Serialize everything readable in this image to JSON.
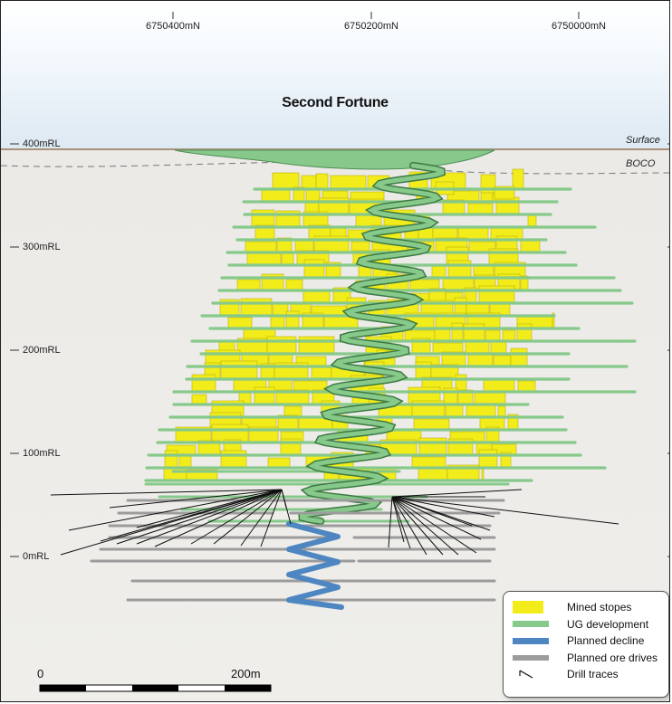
{
  "title": "Second Fortune",
  "northings": [
    "6750400mN",
    "6750200mN",
    "6750000mN"
  ],
  "rl_labels": [
    "400mRL",
    "300mRL",
    "200mRL",
    "100mRL",
    "0mRL"
  ],
  "surface_label": "Surface",
  "boco_label": "BOCO",
  "legend": {
    "items": [
      {
        "label": "Mined stopes",
        "color": "#f2ec1a"
      },
      {
        "label": "UG development",
        "color": "#86c98a"
      },
      {
        "label": "Planned decline",
        "color": "#4d86c0"
      },
      {
        "label": "Planned ore drives",
        "color": "#9c9c9c"
      },
      {
        "label": "Drill traces",
        "color": "#111111"
      }
    ]
  },
  "scale_bar": {
    "start_label": "0",
    "end_label": "200m"
  },
  "colors": {
    "stope": "#f2ec1a",
    "development": "#86c98a",
    "decline": "#4d86c0",
    "ore_drive": "#9c9c9c",
    "drill": "#111111",
    "surface": "#a8937a"
  }
}
